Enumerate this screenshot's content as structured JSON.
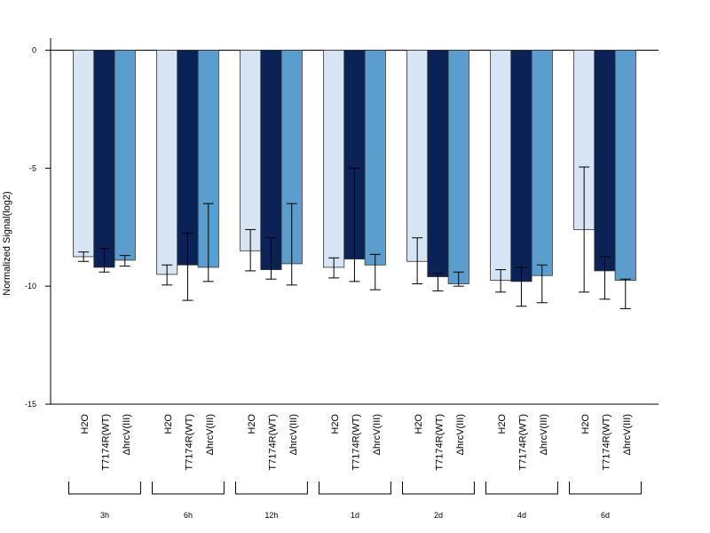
{
  "chart_data": {
    "type": "bar",
    "ylabel": "Normalized Signal(log2)",
    "xlabel": "",
    "title": "",
    "ylim": [
      -15,
      0.5
    ],
    "yticks": [
      0,
      -5,
      -10,
      -15
    ],
    "bar_labels": [
      "H2O",
      "T7174R(WT)",
      "ΔhrcV(III)"
    ],
    "groups": [
      "3h",
      "6h",
      "12h",
      "1d",
      "2d",
      "4d",
      "6d"
    ],
    "colors": [
      "#d6e4f3",
      "#0b2257",
      "#5b9ecd"
    ],
    "series": [
      {
        "values": [
          -8.75,
          -9.5,
          -8.5,
          -9.2,
          -8.95,
          -9.75,
          -7.6
        ],
        "error_low": [
          -8.95,
          -9.95,
          -9.35,
          -9.65,
          -9.9,
          -10.25,
          -10.25
        ],
        "error_high": [
          -8.55,
          -9.1,
          -7.6,
          -8.8,
          -7.95,
          -9.3,
          -4.95
        ]
      },
      {
        "values": [
          -9.2,
          -9.1,
          -9.3,
          -8.85,
          -9.6,
          -9.8,
          -9.35
        ],
        "error_low": [
          -9.4,
          -10.6,
          -9.7,
          -9.8,
          -10.2,
          -10.85,
          -10.55
        ],
        "error_high": [
          -8.4,
          -7.75,
          -7.95,
          -5.0,
          -9.45,
          -9.2,
          -8.75
        ]
      },
      {
        "values": [
          -8.9,
          -9.2,
          -9.05,
          -9.1,
          -9.9,
          -9.55,
          -9.75
        ],
        "error_low": [
          -9.15,
          -9.8,
          -9.95,
          -10.15,
          -10.0,
          -10.7,
          -10.95
        ],
        "error_high": [
          -8.7,
          -6.5,
          -6.5,
          -8.65,
          -9.4,
          -9.1,
          -9.7
        ]
      }
    ]
  }
}
